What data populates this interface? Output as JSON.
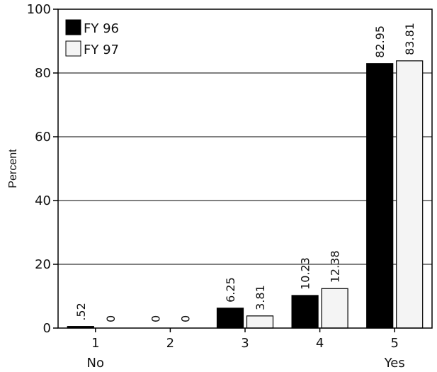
{
  "chart_data": {
    "type": "bar",
    "categories": [
      "1",
      "2",
      "3",
      "4",
      "5"
    ],
    "category_sublabels": [
      "No",
      "",
      "",
      "",
      "Yes"
    ],
    "series": [
      {
        "name": "FY 96",
        "values": [
          0.52,
          0,
          6.25,
          10.23,
          82.95
        ],
        "labels": [
          ".52",
          "0",
          "6.25",
          "10.23",
          "82.95"
        ],
        "color": "#000000"
      },
      {
        "name": "FY 97",
        "values": [
          0,
          0,
          3.81,
          12.38,
          83.81
        ],
        "labels": [
          "0",
          "0",
          "3.81",
          "12.38",
          "83.81"
        ],
        "color": "#f4f4f4"
      }
    ],
    "ylabel": "Percent",
    "ylim": [
      0,
      100
    ],
    "yticks": [
      "0",
      "20",
      "40",
      "60",
      "80",
      "100"
    ],
    "grid": true,
    "legend": "top-left"
  }
}
